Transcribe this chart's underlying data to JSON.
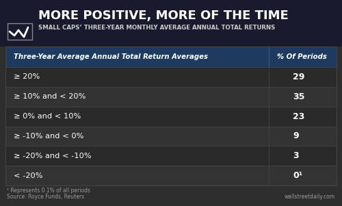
{
  "title": "MORE POSITIVE, MORE OF THE TIME",
  "subtitle": "SMALL CAPS’ THREE-YEAR MONTHLY AVERAGE ANNUAL TOTAL RETURNS",
  "col1_header": "Three-Year Average Annual Total Return Averages",
  "col2_header": "% Of Periods",
  "row_labels": [
    "≥ 20%",
    "≥ 10% and < 20%",
    "≥ 0% and < 10%",
    "≥ -10% and < 0%",
    "≥ -20% and < -10%",
    "< -20%"
  ],
  "row_values": [
    "29",
    "35",
    "23",
    "9",
    "3",
    "0¹"
  ],
  "footnote1": "¹ Represents 0.1% of all periods",
  "footnote2": "Source: Royce Funds, Reuters",
  "watermark": "wallstreetdaily.com",
  "bg_outer": "#2e2e2e",
  "bg_header": "#1a1a2e",
  "bg_table_header": "#1e3a5f",
  "bg_row_dark": "#2a2a2a",
  "bg_row_light": "#333333",
  "text_white": "#ffffff",
  "text_light": "#cccccc",
  "text_gray": "#999999",
  "header_line_color": "#555555",
  "divider_color": "#444444"
}
